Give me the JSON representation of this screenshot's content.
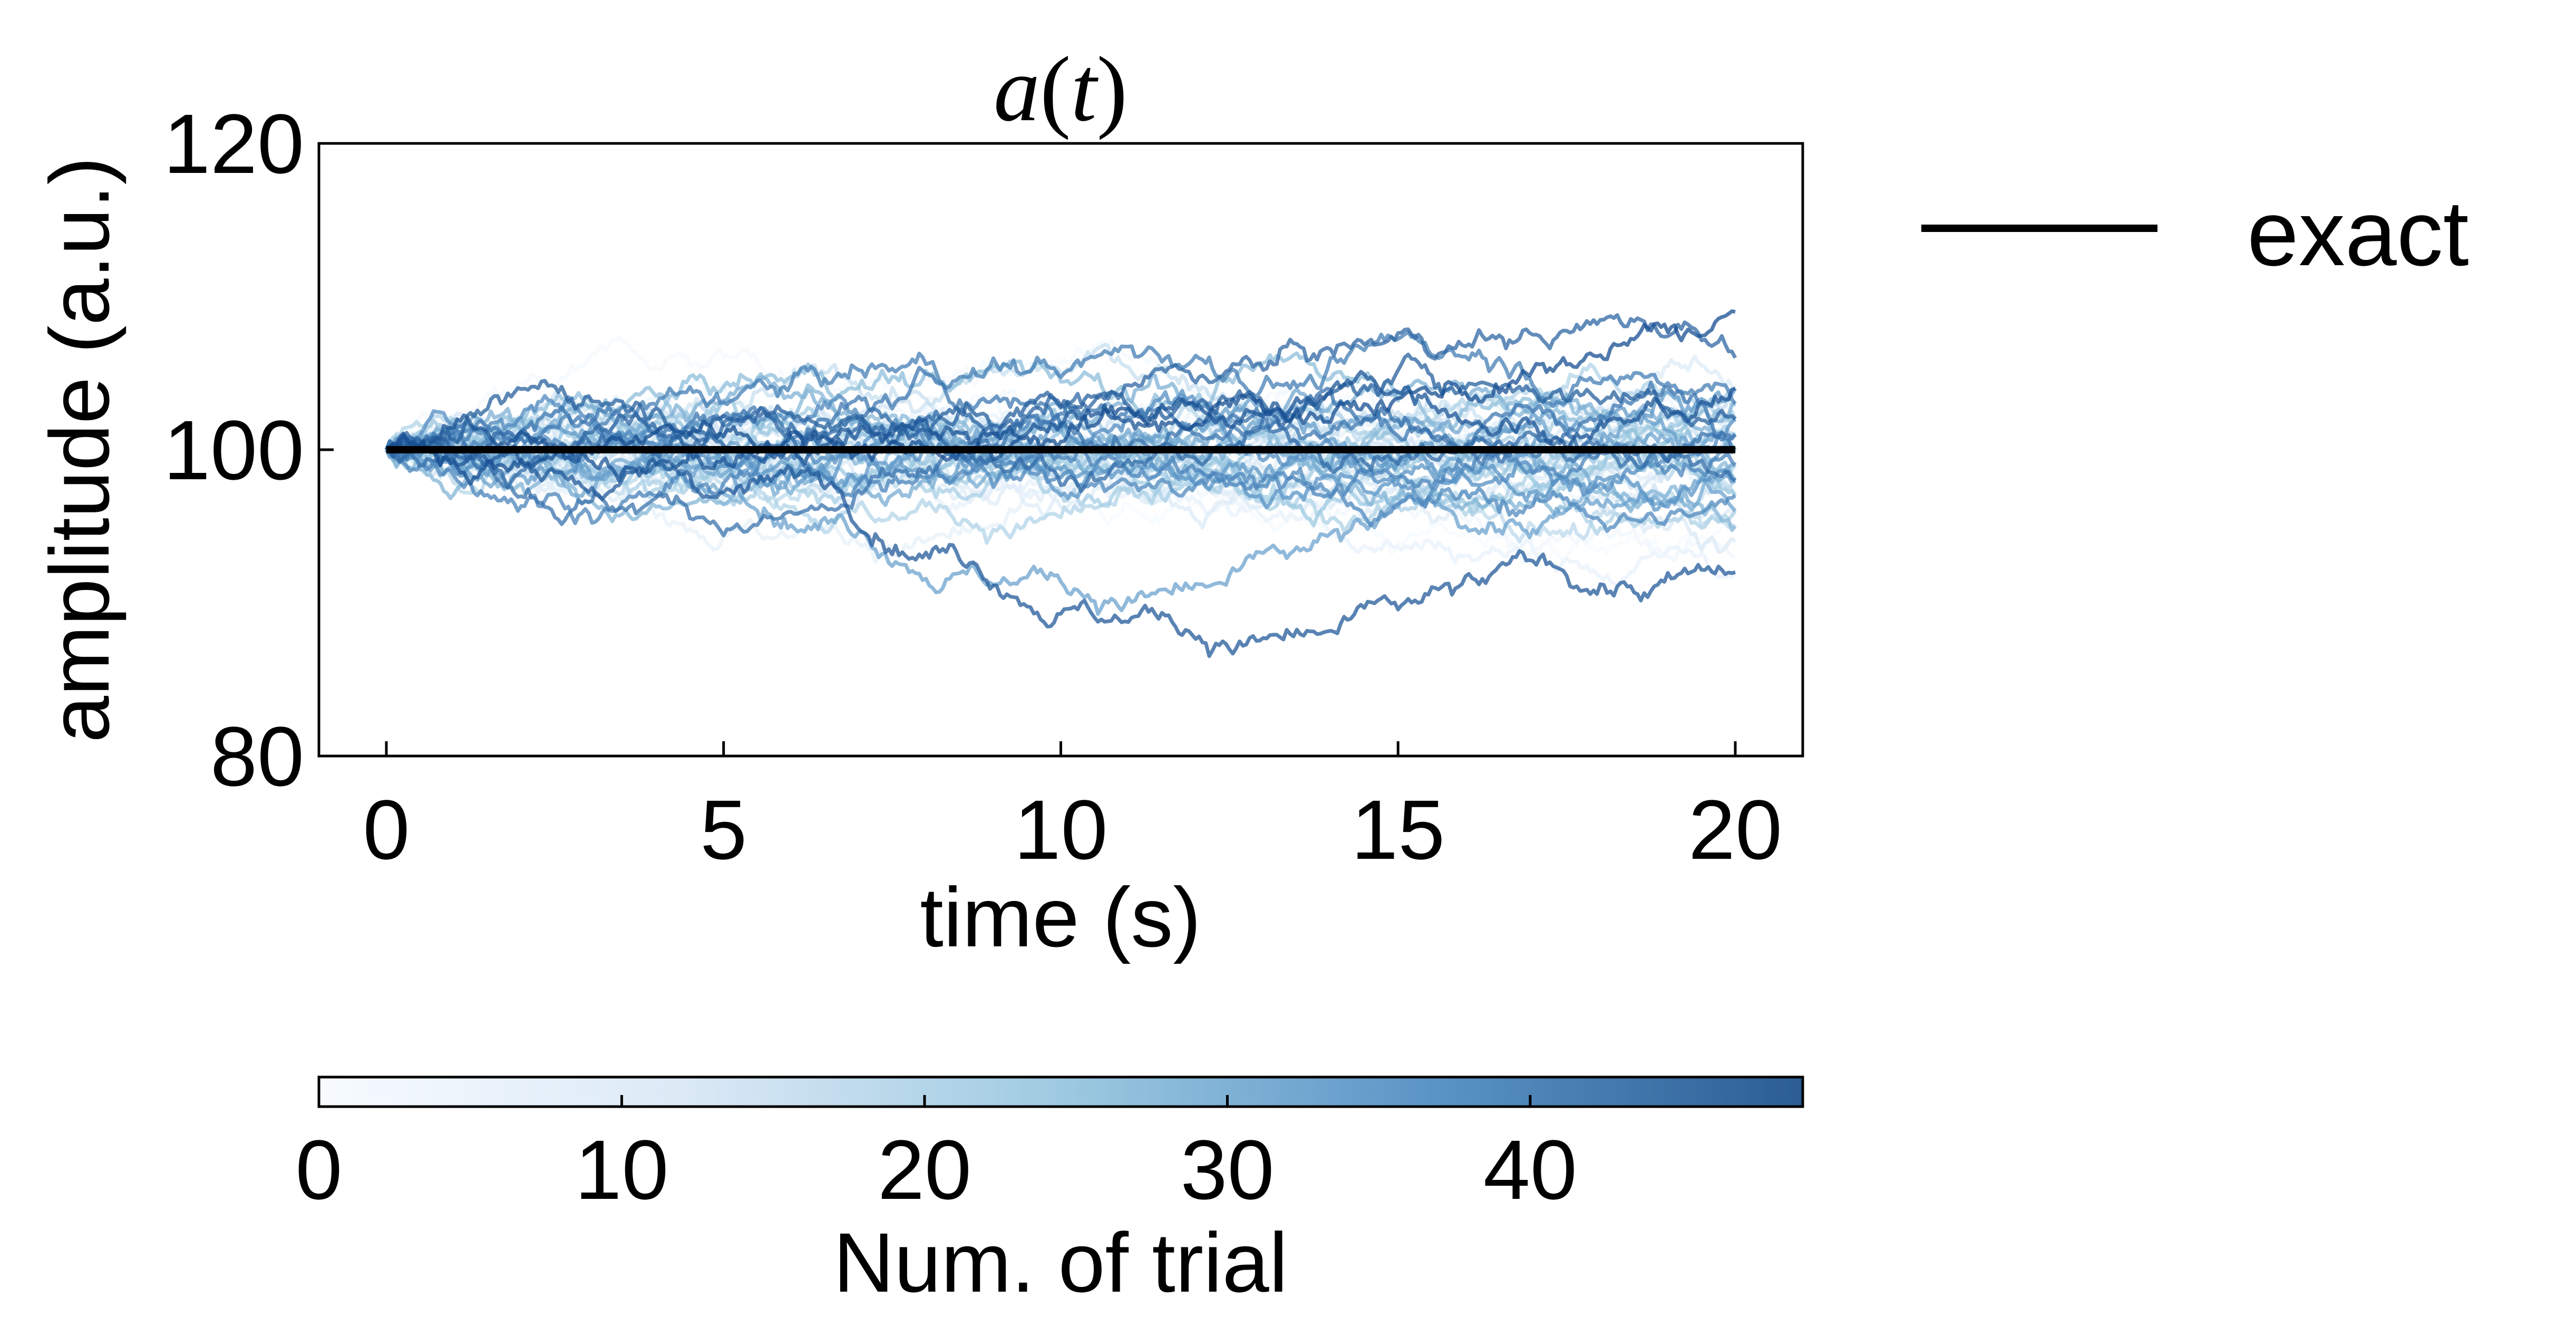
{
  "chart_data": {
    "type": "line",
    "title": "a(t)",
    "title_parts": {
      "var": "a",
      "open": "(",
      "arg": "t",
      "close": ")"
    },
    "xlabel": "time (s)",
    "ylabel": "amplitude (a.u.)",
    "xlim": [
      -1,
      21
    ],
    "ylim": [
      80,
      120
    ],
    "x_ticks": [
      0,
      5,
      10,
      15,
      20
    ],
    "x_tick_labels": [
      "0",
      "5",
      "10",
      "15",
      "20"
    ],
    "y_ticks": [
      80,
      100,
      120
    ],
    "y_tick_labels": [
      "80",
      "100",
      "120"
    ],
    "grid": false,
    "legend": {
      "position": "outside-right",
      "entries": [
        {
          "label": "exact",
          "color": "#000000"
        }
      ]
    },
    "exact": {
      "name": "exact",
      "color": "#000000",
      "x": [
        0,
        20
      ],
      "y": [
        100,
        100
      ]
    },
    "trials": {
      "count": 49,
      "x_range": [
        0,
        20
      ],
      "start_value": 100,
      "colormap": "Blues",
      "final_values": [
        95,
        101,
        97,
        93,
        103,
        99,
        92,
        100,
        98,
        102,
        96,
        104,
        94,
        101,
        99,
        97,
        103,
        100,
        95,
        98,
        102,
        96,
        101,
        99,
        104,
        97,
        100,
        102,
        98,
        95,
        103,
        99,
        101,
        96,
        100,
        104,
        98,
        102,
        97,
        99,
        103,
        100,
        101,
        98,
        106,
        102,
        92,
        104,
        109
      ]
    },
    "colorbar": {
      "label": "Num. of trial",
      "range": [
        0,
        49
      ],
      "ticks": [
        0,
        10,
        20,
        30,
        40
      ],
      "tick_labels": [
        "0",
        "10",
        "20",
        "30",
        "40"
      ],
      "color_start": "#f7fbff",
      "color_end": "#08306b"
    }
  }
}
